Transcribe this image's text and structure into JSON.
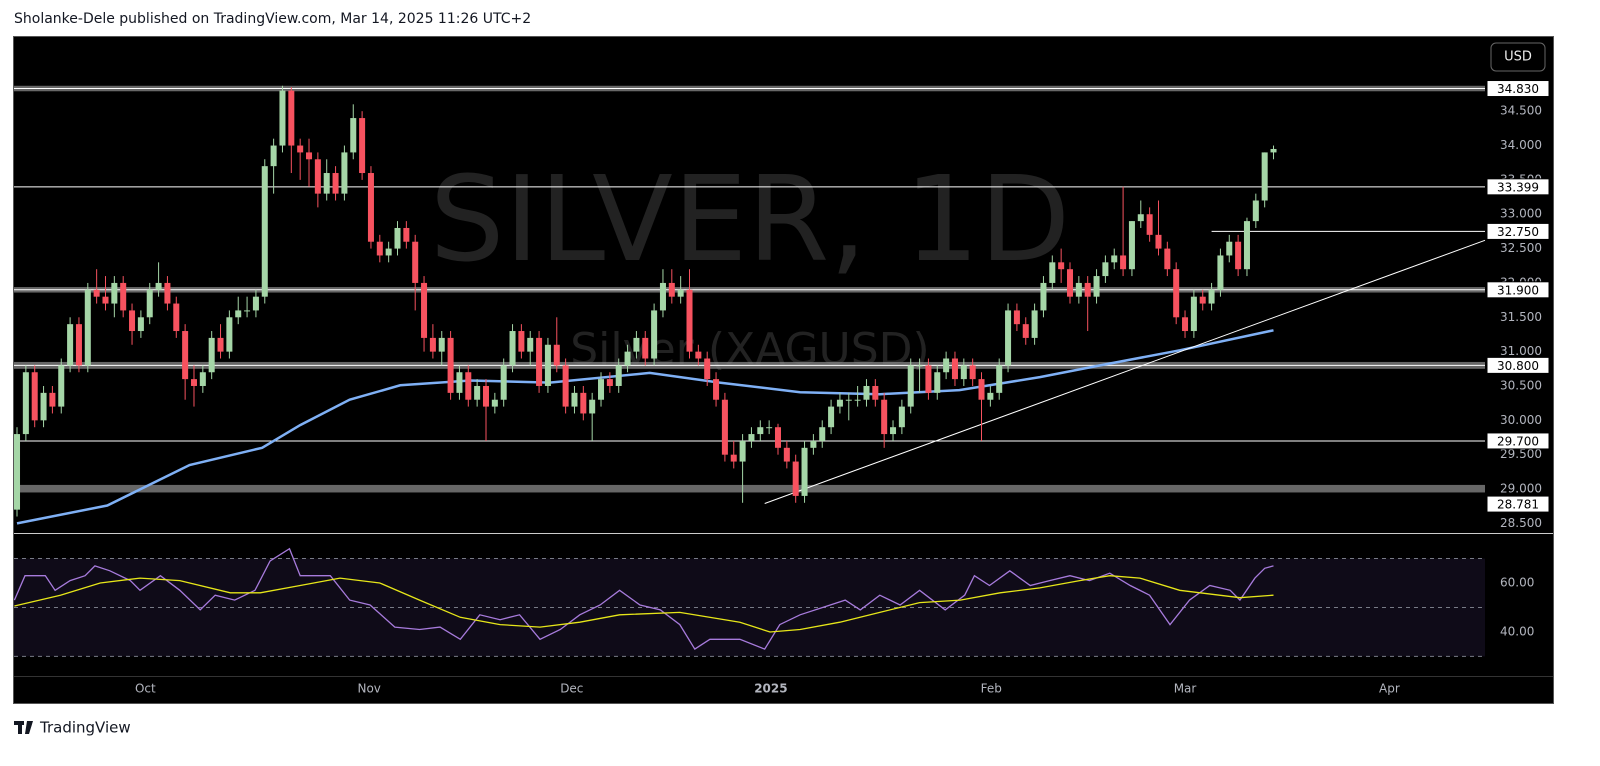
{
  "header": {
    "text": "Sholanke-Dele published on TradingView.com, Mar 14, 2025 11:26 UTC+2"
  },
  "footer": {
    "brand": "TradingView"
  },
  "chart_data": [
    {
      "type": "candlestick",
      "watermark": "SILVER, 1D",
      "watermark_subtitle": "Silver (XAGUSD)",
      "currency": "USD",
      "up_color": "#a5d6a7",
      "down_color": "#f7525f",
      "xlim": [
        -0.34,
        165.9
      ],
      "ylim": [
        28.36,
        35.58
      ],
      "yticks": [
        {
          "value": 34.5,
          "label": "34.500"
        },
        {
          "value": 34,
          "label": "34.000"
        },
        {
          "value": 33.5,
          "label": "33.500"
        },
        {
          "value": 33,
          "label": "33.000"
        },
        {
          "value": 32.5,
          "label": "32.500"
        },
        {
          "value": 32,
          "label": "32.000"
        },
        {
          "value": 31.5,
          "label": "31.500"
        },
        {
          "value": 31,
          "label": "31.000"
        },
        {
          "value": 30.5,
          "label": "30.500"
        },
        {
          "value": 30,
          "label": "30.000"
        },
        {
          "value": 29.5,
          "label": "29.500"
        },
        {
          "value": 29,
          "label": "29.000"
        },
        {
          "value": 28.5,
          "label": "28.500"
        }
      ],
      "candles": [
        [
          28.7,
          29.9,
          28.6,
          29.8
        ],
        [
          29.8,
          30.8,
          29.7,
          30.7
        ],
        [
          30.7,
          30.8,
          29.9,
          30.0
        ],
        [
          30.0,
          30.5,
          29.9,
          30.4
        ],
        [
          30.4,
          30.5,
          30.1,
          30.2
        ],
        [
          30.2,
          30.9,
          30.1,
          30.8
        ],
        [
          30.8,
          31.5,
          30.7,
          31.4
        ],
        [
          31.4,
          31.5,
          30.7,
          30.8
        ],
        [
          30.8,
          32.0,
          30.7,
          31.9
        ],
        [
          31.9,
          32.2,
          31.7,
          31.8
        ],
        [
          31.8,
          32.1,
          31.6,
          31.7
        ],
        [
          31.7,
          32.1,
          31.5,
          32.0
        ],
        [
          32.0,
          32.1,
          31.5,
          31.6
        ],
        [
          31.6,
          31.7,
          31.1,
          31.3
        ],
        [
          31.3,
          31.6,
          31.2,
          31.5
        ],
        [
          31.5,
          32.0,
          31.4,
          31.9
        ],
        [
          31.9,
          32.3,
          31.8,
          32.0
        ],
        [
          32.0,
          32.1,
          31.6,
          31.7
        ],
        [
          31.7,
          31.8,
          31.2,
          31.3
        ],
        [
          31.3,
          31.4,
          30.3,
          30.6
        ],
        [
          30.6,
          30.8,
          30.2,
          30.5
        ],
        [
          30.5,
          30.8,
          30.4,
          30.7
        ],
        [
          30.7,
          31.3,
          30.6,
          31.2
        ],
        [
          31.2,
          31.4,
          30.9,
          31.0
        ],
        [
          31.0,
          31.6,
          30.9,
          31.5
        ],
        [
          31.5,
          31.8,
          31.4,
          31.6
        ],
        [
          31.6,
          31.8,
          31.5,
          31.6
        ],
        [
          31.6,
          31.9,
          31.5,
          31.8
        ],
        [
          31.8,
          33.8,
          31.7,
          33.7
        ],
        [
          33.7,
          34.1,
          33.3,
          34.0
        ],
        [
          34.0,
          34.87,
          33.9,
          34.8
        ],
        [
          34.8,
          34.85,
          33.6,
          34.0
        ],
        [
          34.0,
          34.1,
          33.5,
          33.9
        ],
        [
          33.9,
          34.1,
          33.4,
          33.8
        ],
        [
          33.8,
          33.9,
          33.1,
          33.3
        ],
        [
          33.3,
          33.8,
          33.2,
          33.6
        ],
        [
          33.6,
          33.7,
          33.2,
          33.3
        ],
        [
          33.3,
          34.0,
          33.2,
          33.9
        ],
        [
          33.9,
          34.6,
          33.8,
          34.4
        ],
        [
          34.4,
          34.5,
          33.5,
          33.6
        ],
        [
          33.6,
          33.7,
          32.5,
          32.6
        ],
        [
          32.6,
          32.7,
          32.3,
          32.4
        ],
        [
          32.4,
          32.6,
          32.3,
          32.5
        ],
        [
          32.5,
          32.9,
          32.4,
          32.8
        ],
        [
          32.8,
          32.9,
          32.5,
          32.6
        ],
        [
          32.6,
          32.7,
          31.6,
          32.0
        ],
        [
          32.0,
          32.1,
          31.0,
          31.2
        ],
        [
          31.2,
          31.4,
          30.9,
          31.0
        ],
        [
          31.0,
          31.3,
          30.8,
          31.2
        ],
        [
          31.2,
          31.3,
          30.3,
          30.4
        ],
        [
          30.4,
          30.8,
          30.3,
          30.7
        ],
        [
          30.7,
          30.8,
          30.2,
          30.3
        ],
        [
          30.3,
          30.6,
          30.2,
          30.5
        ],
        [
          30.5,
          30.6,
          29.7,
          30.2
        ],
        [
          30.2,
          30.4,
          30.1,
          30.3
        ],
        [
          30.3,
          30.9,
          30.2,
          30.8
        ],
        [
          30.8,
          31.4,
          30.7,
          31.3
        ],
        [
          31.3,
          31.4,
          30.9,
          31.0
        ],
        [
          31.0,
          31.3,
          30.8,
          31.2
        ],
        [
          31.2,
          31.3,
          30.4,
          30.5
        ],
        [
          30.5,
          31.2,
          30.4,
          31.1
        ],
        [
          31.1,
          31.5,
          30.7,
          30.8
        ],
        [
          30.8,
          30.9,
          30.1,
          30.2
        ],
        [
          30.2,
          30.5,
          30.1,
          30.4
        ],
        [
          30.4,
          30.5,
          30.0,
          30.1
        ],
        [
          30.1,
          30.4,
          29.7,
          30.3
        ],
        [
          30.3,
          30.7,
          30.2,
          30.6
        ],
        [
          30.6,
          30.7,
          30.4,
          30.5
        ],
        [
          30.5,
          30.9,
          30.4,
          30.8
        ],
        [
          30.8,
          31.1,
          30.7,
          31.0
        ],
        [
          31.0,
          31.3,
          30.9,
          31.2
        ],
        [
          31.2,
          31.3,
          30.8,
          30.9
        ],
        [
          30.9,
          31.7,
          30.8,
          31.6
        ],
        [
          31.6,
          32.2,
          31.5,
          32.0
        ],
        [
          32.0,
          32.2,
          31.7,
          31.8
        ],
        [
          31.8,
          32.1,
          31.7,
          31.9
        ],
        [
          31.9,
          32.2,
          30.9,
          31.0
        ],
        [
          31.0,
          31.1,
          30.8,
          30.9
        ],
        [
          30.9,
          31.0,
          30.5,
          30.6
        ],
        [
          30.6,
          30.7,
          30.2,
          30.3
        ],
        [
          30.3,
          30.4,
          29.4,
          29.5
        ],
        [
          29.5,
          29.7,
          29.3,
          29.4
        ],
        [
          29.4,
          29.8,
          28.8,
          29.7
        ],
        [
          29.7,
          29.9,
          29.6,
          29.8
        ],
        [
          29.8,
          30.0,
          29.7,
          29.9
        ],
        [
          29.9,
          30.0,
          29.8,
          29.9
        ],
        [
          29.9,
          29.95,
          29.5,
          29.6
        ],
        [
          29.6,
          29.7,
          29.3,
          29.4
        ],
        [
          29.4,
          29.5,
          28.8,
          28.9
        ],
        [
          28.9,
          29.7,
          28.8,
          29.6
        ],
        [
          29.6,
          29.8,
          29.5,
          29.7
        ],
        [
          29.7,
          30.0,
          29.6,
          29.9
        ],
        [
          29.9,
          30.3,
          29.8,
          30.2
        ],
        [
          30.2,
          30.4,
          30.1,
          30.3
        ],
        [
          30.3,
          30.4,
          30.0,
          30.3
        ],
        [
          30.3,
          30.5,
          30.2,
          30.3
        ],
        [
          30.3,
          30.6,
          30.2,
          30.5
        ],
        [
          30.5,
          30.6,
          30.2,
          30.3
        ],
        [
          30.3,
          30.4,
          29.6,
          29.8
        ],
        [
          29.8,
          30.0,
          29.7,
          29.9
        ],
        [
          29.9,
          30.3,
          29.8,
          30.2
        ],
        [
          30.2,
          30.9,
          30.1,
          30.8
        ],
        [
          30.8,
          30.9,
          30.4,
          30.8
        ],
        [
          30.8,
          30.9,
          30.3,
          30.4
        ],
        [
          30.4,
          30.8,
          30.3,
          30.7
        ],
        [
          30.7,
          31.0,
          30.6,
          30.9
        ],
        [
          30.9,
          31.0,
          30.5,
          30.6
        ],
        [
          30.6,
          30.9,
          30.5,
          30.8
        ],
        [
          30.8,
          30.9,
          30.5,
          30.6
        ],
        [
          30.6,
          30.7,
          29.7,
          30.3
        ],
        [
          30.3,
          30.5,
          30.2,
          30.4
        ],
        [
          30.4,
          30.9,
          30.3,
          30.8
        ],
        [
          30.8,
          31.7,
          30.7,
          31.6
        ],
        [
          31.6,
          31.7,
          31.3,
          31.4
        ],
        [
          31.4,
          31.5,
          31.1,
          31.2
        ],
        [
          31.2,
          31.7,
          31.1,
          31.6
        ],
        [
          31.6,
          32.1,
          31.5,
          32.0
        ],
        [
          32.0,
          32.4,
          31.9,
          32.3
        ],
        [
          32.3,
          32.5,
          32.0,
          32.2
        ],
        [
          32.2,
          32.3,
          31.7,
          31.8
        ],
        [
          31.8,
          32.1,
          31.7,
          32.0
        ],
        [
          32.0,
          32.1,
          31.3,
          31.8
        ],
        [
          31.8,
          32.2,
          31.7,
          32.1
        ],
        [
          32.1,
          32.4,
          32.0,
          32.3
        ],
        [
          32.3,
          32.5,
          32.2,
          32.4
        ],
        [
          32.4,
          33.4,
          32.1,
          32.2
        ],
        [
          32.2,
          32.9,
          32.1,
          32.9
        ],
        [
          32.9,
          33.2,
          32.8,
          33.0
        ],
        [
          33.0,
          33.1,
          32.6,
          32.7
        ],
        [
          32.7,
          33.2,
          32.4,
          32.5
        ],
        [
          32.5,
          32.6,
          32.1,
          32.2
        ],
        [
          32.2,
          32.3,
          31.4,
          31.5
        ],
        [
          31.5,
          31.6,
          31.2,
          31.3
        ],
        [
          31.3,
          31.9,
          31.2,
          31.8
        ],
        [
          31.8,
          31.9,
          31.6,
          31.7
        ],
        [
          31.7,
          32.0,
          31.6,
          31.9
        ],
        [
          31.9,
          32.5,
          31.8,
          32.4
        ],
        [
          32.4,
          32.7,
          32.3,
          32.6
        ],
        [
          32.6,
          32.7,
          32.1,
          32.2
        ],
        [
          32.2,
          32.95,
          32.1,
          32.9
        ],
        [
          32.9,
          33.3,
          32.8,
          33.2
        ],
        [
          33.2,
          33.9,
          33.1,
          33.9
        ],
        [
          33.9,
          34.0,
          33.8,
          33.95
        ]
      ],
      "ma": {
        "color": "#7fb0f5",
        "x": [
          0,
          10.2,
          19.5,
          27.7,
          32,
          37.6,
          43.3,
          51.2,
          60.2,
          71.5,
          79.4,
          88.5,
          97.5,
          106.5,
          115.6,
          122.4,
          131.4,
          142
        ],
        "values": [
          28.5,
          28.76,
          29.35,
          29.6,
          29.93,
          30.3,
          30.51,
          30.58,
          30.55,
          30.69,
          30.55,
          30.41,
          30.38,
          30.44,
          30.63,
          30.8,
          31.02,
          31.31
        ]
      },
      "trendline": {
        "color": "#ffffff",
        "x": [
          84.5,
          165.9
        ],
        "values": [
          28.79,
          32.62
        ]
      },
      "zones": [
        [
          34.79,
          34.87
        ],
        [
          31.86,
          31.94
        ],
        [
          30.75,
          30.85
        ],
        [
          28.95,
          29.06
        ]
      ],
      "levels": [
        {
          "value": 34.83,
          "label": "34.830"
        },
        {
          "value": 33.399,
          "label": "33.399"
        },
        {
          "value": 32.75,
          "label": "32.750",
          "from": 135
        },
        {
          "value": 31.9,
          "label": "31.900"
        },
        {
          "value": 30.8,
          "label": "30.800"
        },
        {
          "value": 29.7,
          "label": "29.700"
        },
        {
          "value": 28.781,
          "label": "28.781",
          "line": false
        }
      ]
    },
    {
      "type": "line",
      "xlim": [
        -0.34,
        165.9
      ],
      "ylim": [
        22,
        78.8
      ],
      "yticks": [
        {
          "value": 60,
          "label": "60.00"
        },
        {
          "value": 40,
          "label": "40.00"
        }
      ],
      "bands": [
        70,
        50,
        30
      ],
      "xticks": [
        {
          "value": 14.5,
          "label": "Oct"
        },
        {
          "value": 39.8,
          "label": "Nov"
        },
        {
          "value": 62.7,
          "label": "Dec"
        },
        {
          "value": 85.2,
          "label": "2025"
        },
        {
          "value": 110.1,
          "label": "Feb"
        },
        {
          "value": 132.0,
          "label": "Mar"
        },
        {
          "value": 155.1,
          "label": "Apr"
        }
      ],
      "series": [
        {
          "color": "#a77bdc",
          "x": [
            -0.3,
            0.9,
            3.2,
            4.3,
            6.0,
            7.7,
            8.8,
            10.5,
            12.8,
            13.9,
            16.2,
            18.4,
            20.7,
            22.4,
            24.6,
            26.9,
            28.6,
            30.8,
            32.0,
            35.4,
            37.6,
            39.9,
            42.7,
            45.5,
            47.8,
            50.1,
            52.3,
            54.6,
            56.8,
            59.1,
            61.4,
            63.6,
            65.9,
            68.1,
            70.4,
            72.7,
            74.9,
            76.6,
            78.3,
            81.7,
            84.5,
            86.2,
            88.5,
            91.9,
            93.6,
            95.3,
            97.5,
            99.8,
            102.0,
            104.9,
            107.1,
            108.2,
            109.9,
            112.2,
            114.5,
            116.7,
            119.0,
            121.2,
            123.5,
            125.8,
            128.0,
            130.3,
            132.5,
            134.8,
            137.1,
            138.2,
            139.9,
            141.0,
            142
          ],
          "values": [
            53,
            63,
            63,
            57,
            61,
            63,
            67,
            65,
            61,
            57,
            63,
            57,
            49,
            55,
            53,
            57,
            69,
            74,
            63,
            63,
            53,
            51,
            42,
            41,
            42,
            37,
            47,
            45,
            47,
            37,
            41,
            47,
            51,
            57,
            51,
            49,
            43,
            33,
            37,
            37,
            33,
            43,
            47,
            51,
            53,
            49,
            55,
            51,
            57,
            49,
            55,
            63,
            59,
            65,
            59,
            61,
            63,
            61,
            64,
            59,
            55,
            43,
            53,
            59,
            57,
            53,
            62,
            66,
            67
          ]
        },
        {
          "color": "#e6e619",
          "x": [
            -0.3,
            4.9,
            9.4,
            13.9,
            18.4,
            24.1,
            27.5,
            32.0,
            36.5,
            41.0,
            45.5,
            50.1,
            54.6,
            59.1,
            63.6,
            68.1,
            74.9,
            81.7,
            85.1,
            88.5,
            93.0,
            97.5,
            102.0,
            106.6,
            111.1,
            115.6,
            120.1,
            123.5,
            126.9,
            131.4,
            135.9,
            138.2,
            142
          ],
          "values": [
            50.6,
            55,
            60,
            62,
            61,
            56,
            56,
            59,
            62,
            60,
            53,
            46,
            43,
            42,
            44,
            47,
            48,
            44,
            40,
            41,
            44,
            48,
            52,
            53,
            56,
            58,
            61,
            63,
            62,
            57,
            55,
            54,
            55
          ]
        }
      ]
    }
  ]
}
